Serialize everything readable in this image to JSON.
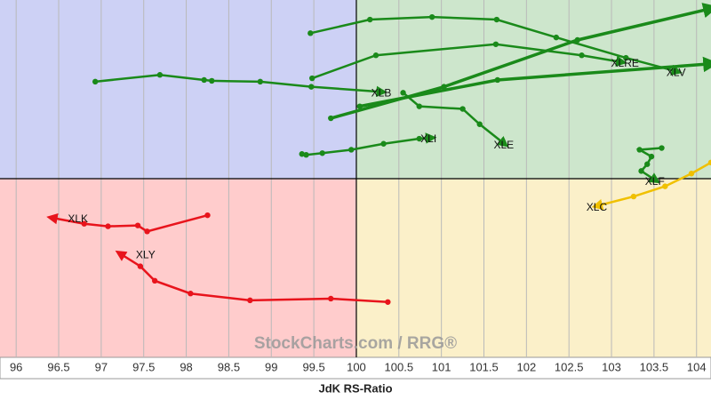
{
  "chart_data": {
    "type": "line",
    "x_label": "JdK RS-Ratio",
    "watermark": "StockCharts.com / RRG®",
    "xlim": [
      95.81,
      104.17
    ],
    "ylim": [
      97.9,
      102.1
    ],
    "xticks": [
      96,
      96.5,
      97,
      97.5,
      98,
      98.5,
      99,
      99.5,
      100,
      100.5,
      101,
      101.5,
      102,
      102.5,
      103,
      103.5,
      104
    ],
    "center": [
      100,
      100
    ],
    "quadrant_colors": [
      "#cdd1f5",
      "#cde6cc",
      "#ffcccc",
      "#fbf0c9"
    ],
    "grid": true,
    "series": [
      {
        "name": "XLK",
        "color": "#e8141c",
        "x": [
          98.25,
          97.54,
          97.43,
          97.08,
          96.8,
          96.42
        ],
        "values": [
          99.57,
          99.38,
          99.45,
          99.44,
          99.47,
          99.54
        ]
      },
      {
        "name": "XLY",
        "color": "#e8141c",
        "x": [
          100.37,
          99.7,
          98.75,
          98.05,
          97.63,
          97.46,
          97.22
        ],
        "values": [
          98.55,
          98.59,
          98.57,
          98.65,
          98.8,
          98.97,
          99.12
        ]
      },
      {
        "name": "XLC",
        "color": "#f0c000",
        "x": [
          104.17,
          103.94,
          103.63,
          103.26,
          102.83
        ],
        "values": [
          100.19,
          100.06,
          99.91,
          99.79,
          99.68
        ]
      },
      {
        "name": "XLF",
        "color": "#1a8a1a",
        "x": [
          103.59,
          103.33,
          103.47,
          103.42,
          103.35,
          103.52
        ],
        "values": [
          100.36,
          100.34,
          100.26,
          100.17,
          100.09,
          99.98
        ]
      },
      {
        "name": "XLI",
        "color": "#1a8a1a",
        "x": [
          99.36,
          99.41,
          99.6,
          99.94,
          100.32,
          100.74,
          100.88
        ],
        "values": [
          100.29,
          100.28,
          100.3,
          100.34,
          100.41,
          100.47,
          100.48
        ]
      },
      {
        "name": "XLE",
        "color": "#1a8a1a",
        "x": [
          100.55,
          100.74,
          101.25,
          101.45,
          101.74
        ],
        "values": [
          101.01,
          100.85,
          100.82,
          100.64,
          100.41
        ]
      },
      {
        "name": "XLB",
        "color": "#1a8a1a",
        "x": [
          96.93,
          97.69,
          98.21,
          98.3,
          98.87,
          99.47,
          100.3
        ],
        "values": [
          101.14,
          101.22,
          101.16,
          101.15,
          101.14,
          101.08,
          101.02
        ]
      },
      {
        "name": "XLV",
        "color": "#1a8a1a",
        "x": [
          99.46,
          100.16,
          100.89,
          101.65,
          102.35,
          103.17,
          103.77
        ],
        "values": [
          101.71,
          101.87,
          101.9,
          101.87,
          101.66,
          101.42,
          101.26
        ]
      },
      {
        "name": "XLRE",
        "color": "#1a8a1a",
        "x": [
          99.48,
          100.23,
          101.64,
          102.65,
          103.12
        ],
        "values": [
          101.18,
          101.45,
          101.58,
          101.45,
          101.37
        ]
      },
      {
        "color": "#1a8a1a",
        "x": [
          99.7,
          101.03,
          102.6,
          104.17
        ],
        "values": [
          100.71,
          101.08,
          101.63,
          102.0
        ]
      },
      {
        "color": "#1a8a1a",
        "x": [
          100.04,
          101.66,
          104.17
        ],
        "values": [
          100.85,
          101.16,
          101.35
        ]
      }
    ]
  }
}
